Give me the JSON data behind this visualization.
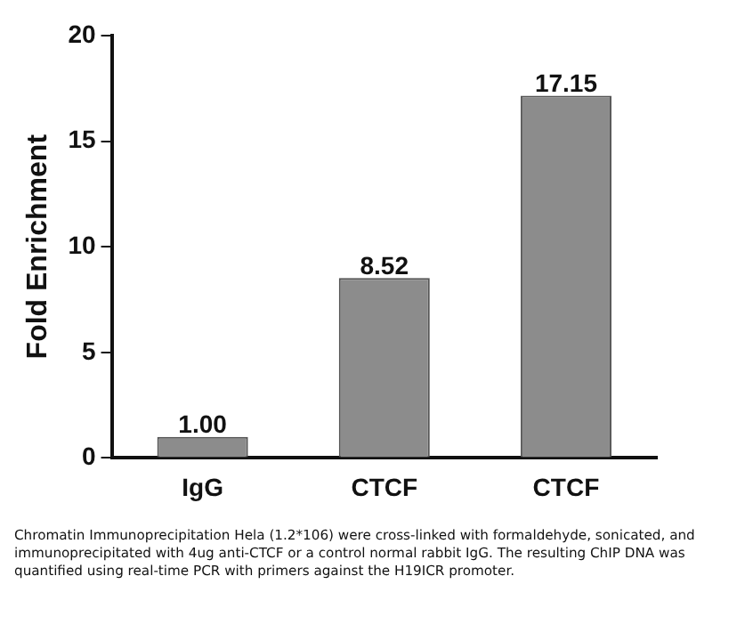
{
  "chart_data": {
    "type": "bar",
    "ylabel": "Fold Enrichment",
    "categories": [
      "IgG",
      "CTCF",
      "CTCF"
    ],
    "values": [
      1.0,
      8.52,
      17.15
    ],
    "value_labels": [
      "1.00",
      "8.52",
      "17.15"
    ],
    "color": "#8c8c8c",
    "ylim": [
      0,
      20
    ],
    "yticks": [
      0,
      5,
      10,
      15,
      20
    ],
    "grid": false,
    "legend": false,
    "annotations": [
      "Chromatin Immunoprecipitation Hela (1.2*106) were cross-linked with formaldehyde, sonicated, and immunoprecipitated with 4ug anti-CTCF or a control normal rabbit IgG. The resulting ChIP DNA was quantified using real-time PCR with primers against the H19ICR promoter."
    ]
  }
}
